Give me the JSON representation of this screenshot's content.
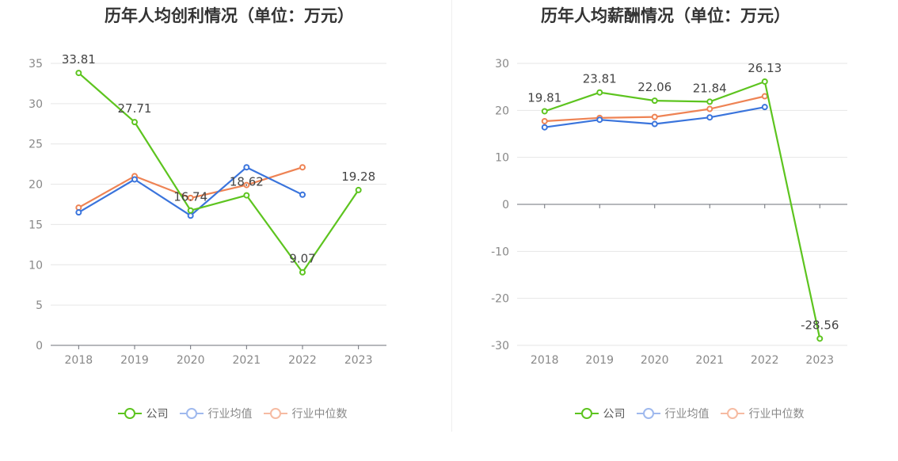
{
  "colors": {
    "company": "#5dc41f",
    "industry_avg": "#3a74dc",
    "industry_median": "#ee8354",
    "grid": "#e6e6e6",
    "axis": "#6e7079",
    "tick_label": "#888888",
    "data_label": "#444444"
  },
  "chart_data": [
    {
      "type": "line",
      "title": "历年人均创利情况（单位：万元）",
      "categories": [
        "2018",
        "2019",
        "2020",
        "2021",
        "2022",
        "2023"
      ],
      "ylim": [
        0,
        35
      ],
      "yticks": [
        0,
        5,
        10,
        15,
        20,
        25,
        30,
        35
      ],
      "grid": true,
      "legend_position": "bottom-center",
      "legend": [
        "公司",
        "行业均值",
        "行业中位数"
      ],
      "series": [
        {
          "name": "公司",
          "color_key": "company",
          "values": [
            33.81,
            27.71,
            16.74,
            18.62,
            9.07,
            19.28
          ],
          "labels": [
            "33.81",
            "27.71",
            "16.74",
            "18.62",
            "9.07",
            "19.28"
          ]
        },
        {
          "name": "行业均值",
          "color_key": "industry_avg",
          "values": [
            16.5,
            20.6,
            16.1,
            22.1,
            18.7,
            null
          ]
        },
        {
          "name": "行业中位数",
          "color_key": "industry_median",
          "values": [
            17.1,
            21.0,
            18.3,
            19.9,
            22.1,
            null
          ]
        }
      ]
    },
    {
      "type": "line",
      "title": "历年人均薪酬情况（单位：万元）",
      "categories": [
        "2018",
        "2019",
        "2020",
        "2021",
        "2022",
        "2023"
      ],
      "ylim": [
        -30,
        30
      ],
      "yticks": [
        -30,
        -20,
        -10,
        0,
        10,
        20,
        30
      ],
      "grid": true,
      "legend_position": "bottom-center",
      "legend": [
        "公司",
        "行业均值",
        "行业中位数"
      ],
      "series": [
        {
          "name": "公司",
          "color_key": "company",
          "values": [
            19.81,
            23.81,
            22.06,
            21.84,
            26.13,
            -28.56
          ],
          "labels": [
            "19.81",
            "23.81",
            "22.06",
            "21.84",
            "26.13",
            "-28.56"
          ]
        },
        {
          "name": "行业均值",
          "color_key": "industry_avg",
          "values": [
            16.4,
            18.0,
            17.1,
            18.5,
            20.7,
            null
          ]
        },
        {
          "name": "行业中位数",
          "color_key": "industry_median",
          "values": [
            17.7,
            18.4,
            18.6,
            20.3,
            23.0,
            null
          ]
        }
      ]
    }
  ]
}
